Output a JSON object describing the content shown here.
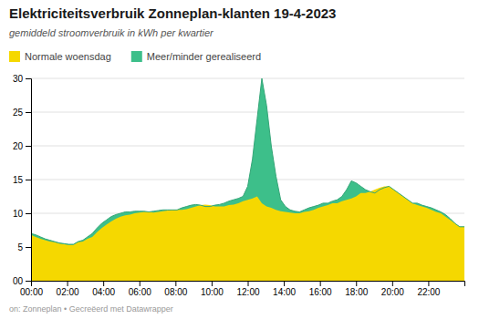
{
  "chart_data": {
    "type": "area",
    "title": "Elektriciteitsverbruik Zonneplan-klanten 19-4-2023",
    "subtitle": "gemiddeld stroomverbruik in kWh per kwartier",
    "source": "on: Zonneplan • Gecreëerd met Datawrapper",
    "legend": "top-left",
    "grid": true,
    "x": [
      0,
      0.2609,
      0.5217,
      0.7826,
      1.0435,
      1.3043,
      1.5652,
      1.8261,
      2.087,
      2.3478,
      2.6087,
      2.8696,
      3.1304,
      3.3913,
      3.6522,
      3.913,
      4.1739,
      4.4348,
      4.6957,
      4.9565,
      5.2174,
      5.4783,
      5.7391,
      6,
      6.2609,
      6.5217,
      6.7826,
      7.0435,
      7.3043,
      7.5652,
      7.8261,
      8.087,
      8.3478,
      8.6087,
      8.8696,
      9.1304,
      9.3913,
      9.6522,
      9.913,
      10.1739,
      10.4348,
      10.6957,
      10.9565,
      11.2174,
      11.4783,
      11.7391,
      12,
      12.2609,
      12.5217,
      12.7826,
      13.0435,
      13.3043,
      13.5652,
      13.8261,
      14.087,
      14.3478,
      14.6087,
      14.8696,
      15.1304,
      15.3913,
      15.6522,
      15.913,
      16.1739,
      16.4348,
      16.6957,
      16.9565,
      17.2174,
      17.4783,
      17.7391,
      18,
      18.2609,
      18.5217,
      18.7826,
      19.0435,
      19.3043,
      19.5652,
      19.8261,
      20.087,
      20.3478,
      20.6087,
      20.8696,
      21.1304,
      21.3913,
      21.6522,
      21.913,
      22.1739,
      22.4348,
      22.6957,
      22.9565,
      23.2174,
      23.4783,
      23.7391,
      24
    ],
    "xlim": [
      0,
      24
    ],
    "xticks": [
      {
        "value": 0,
        "label": "00:00"
      },
      {
        "value": 2,
        "label": "02:00"
      },
      {
        "value": 4,
        "label": "04:00"
      },
      {
        "value": 6,
        "label": "06:00"
      },
      {
        "value": 8,
        "label": "08:00"
      },
      {
        "value": 10,
        "label": "10:00"
      },
      {
        "value": 12,
        "label": "12:00"
      },
      {
        "value": 14,
        "label": "14:00"
      },
      {
        "value": 16,
        "label": "16:00"
      },
      {
        "value": 18,
        "label": "18:00"
      },
      {
        "value": 20,
        "label": "20:00"
      },
      {
        "value": 22,
        "label": "22:00"
      }
    ],
    "ylim": [
      0,
      30
    ],
    "yticks": [
      {
        "value": 0,
        "label": "00"
      },
      5,
      10,
      15,
      20,
      25,
      30
    ],
    "series": [
      {
        "name": "Normale woensdag",
        "color": "#f5d800",
        "values": [
          6.8,
          6.5,
          6.2,
          6.0,
          5.8,
          5.7,
          5.5,
          5.4,
          5.3,
          5.3,
          5.7,
          5.8,
          6.2,
          6.5,
          7.2,
          7.8,
          8.3,
          8.8,
          9.2,
          9.5,
          9.7,
          9.8,
          10.0,
          10.1,
          10.2,
          10.2,
          10.1,
          10.2,
          10.3,
          10.4,
          10.5,
          10.5,
          10.5,
          10.6,
          10.8,
          11.0,
          11.2,
          11.3,
          11.2,
          11.0,
          11.0,
          11.0,
          11.2,
          11.3,
          11.5,
          11.8,
          12.0,
          12.2,
          12.5,
          11.5,
          11.0,
          10.8,
          10.5,
          10.3,
          10.2,
          10.1,
          10.0,
          10.0,
          10.2,
          10.3,
          10.5,
          10.8,
          11.0,
          11.2,
          11.5,
          11.5,
          11.8,
          12.0,
          12.2,
          12.5,
          13.0,
          13.0,
          13.2,
          13.5,
          13.8,
          14.0,
          14.0,
          13.5,
          13.0,
          12.5,
          12.0,
          11.5,
          11.2,
          11.0,
          10.8,
          10.5,
          10.2,
          10.0,
          9.5,
          9.0,
          8.5,
          8.0,
          8.0
        ]
      },
      {
        "name": "Meer/minder gerealiseerd",
        "color": "#3dbf8a",
        "values": [
          7.0,
          6.8,
          6.5,
          6.2,
          6.0,
          5.8,
          5.6,
          5.5,
          5.4,
          5.4,
          5.8,
          6.0,
          6.5,
          7.0,
          7.8,
          8.5,
          9.0,
          9.5,
          9.8,
          10.0,
          10.2,
          10.2,
          10.3,
          10.3,
          10.3,
          10.2,
          10.3,
          10.4,
          10.5,
          10.5,
          10.5,
          10.5,
          10.8,
          11.0,
          11.2,
          11.3,
          11.2,
          11.0,
          11.0,
          11.2,
          11.3,
          11.5,
          11.8,
          12.0,
          12.2,
          12.5,
          14.0,
          18.0,
          24.0,
          30.0,
          26.0,
          20.0,
          15.5,
          12.0,
          11.0,
          10.5,
          10.3,
          10.2,
          10.5,
          10.8,
          11.0,
          11.2,
          11.5,
          11.5,
          11.8,
          12.0,
          12.5,
          13.5,
          14.8,
          14.5,
          14.0,
          13.5,
          13.2,
          13.0,
          13.5,
          13.8,
          14.0,
          13.5,
          13.0,
          12.5,
          12.0,
          11.5,
          11.5,
          11.2,
          11.0,
          10.8,
          10.5,
          10.2,
          9.8,
          9.2,
          8.5,
          8.0,
          8.0
        ]
      }
    ]
  }
}
